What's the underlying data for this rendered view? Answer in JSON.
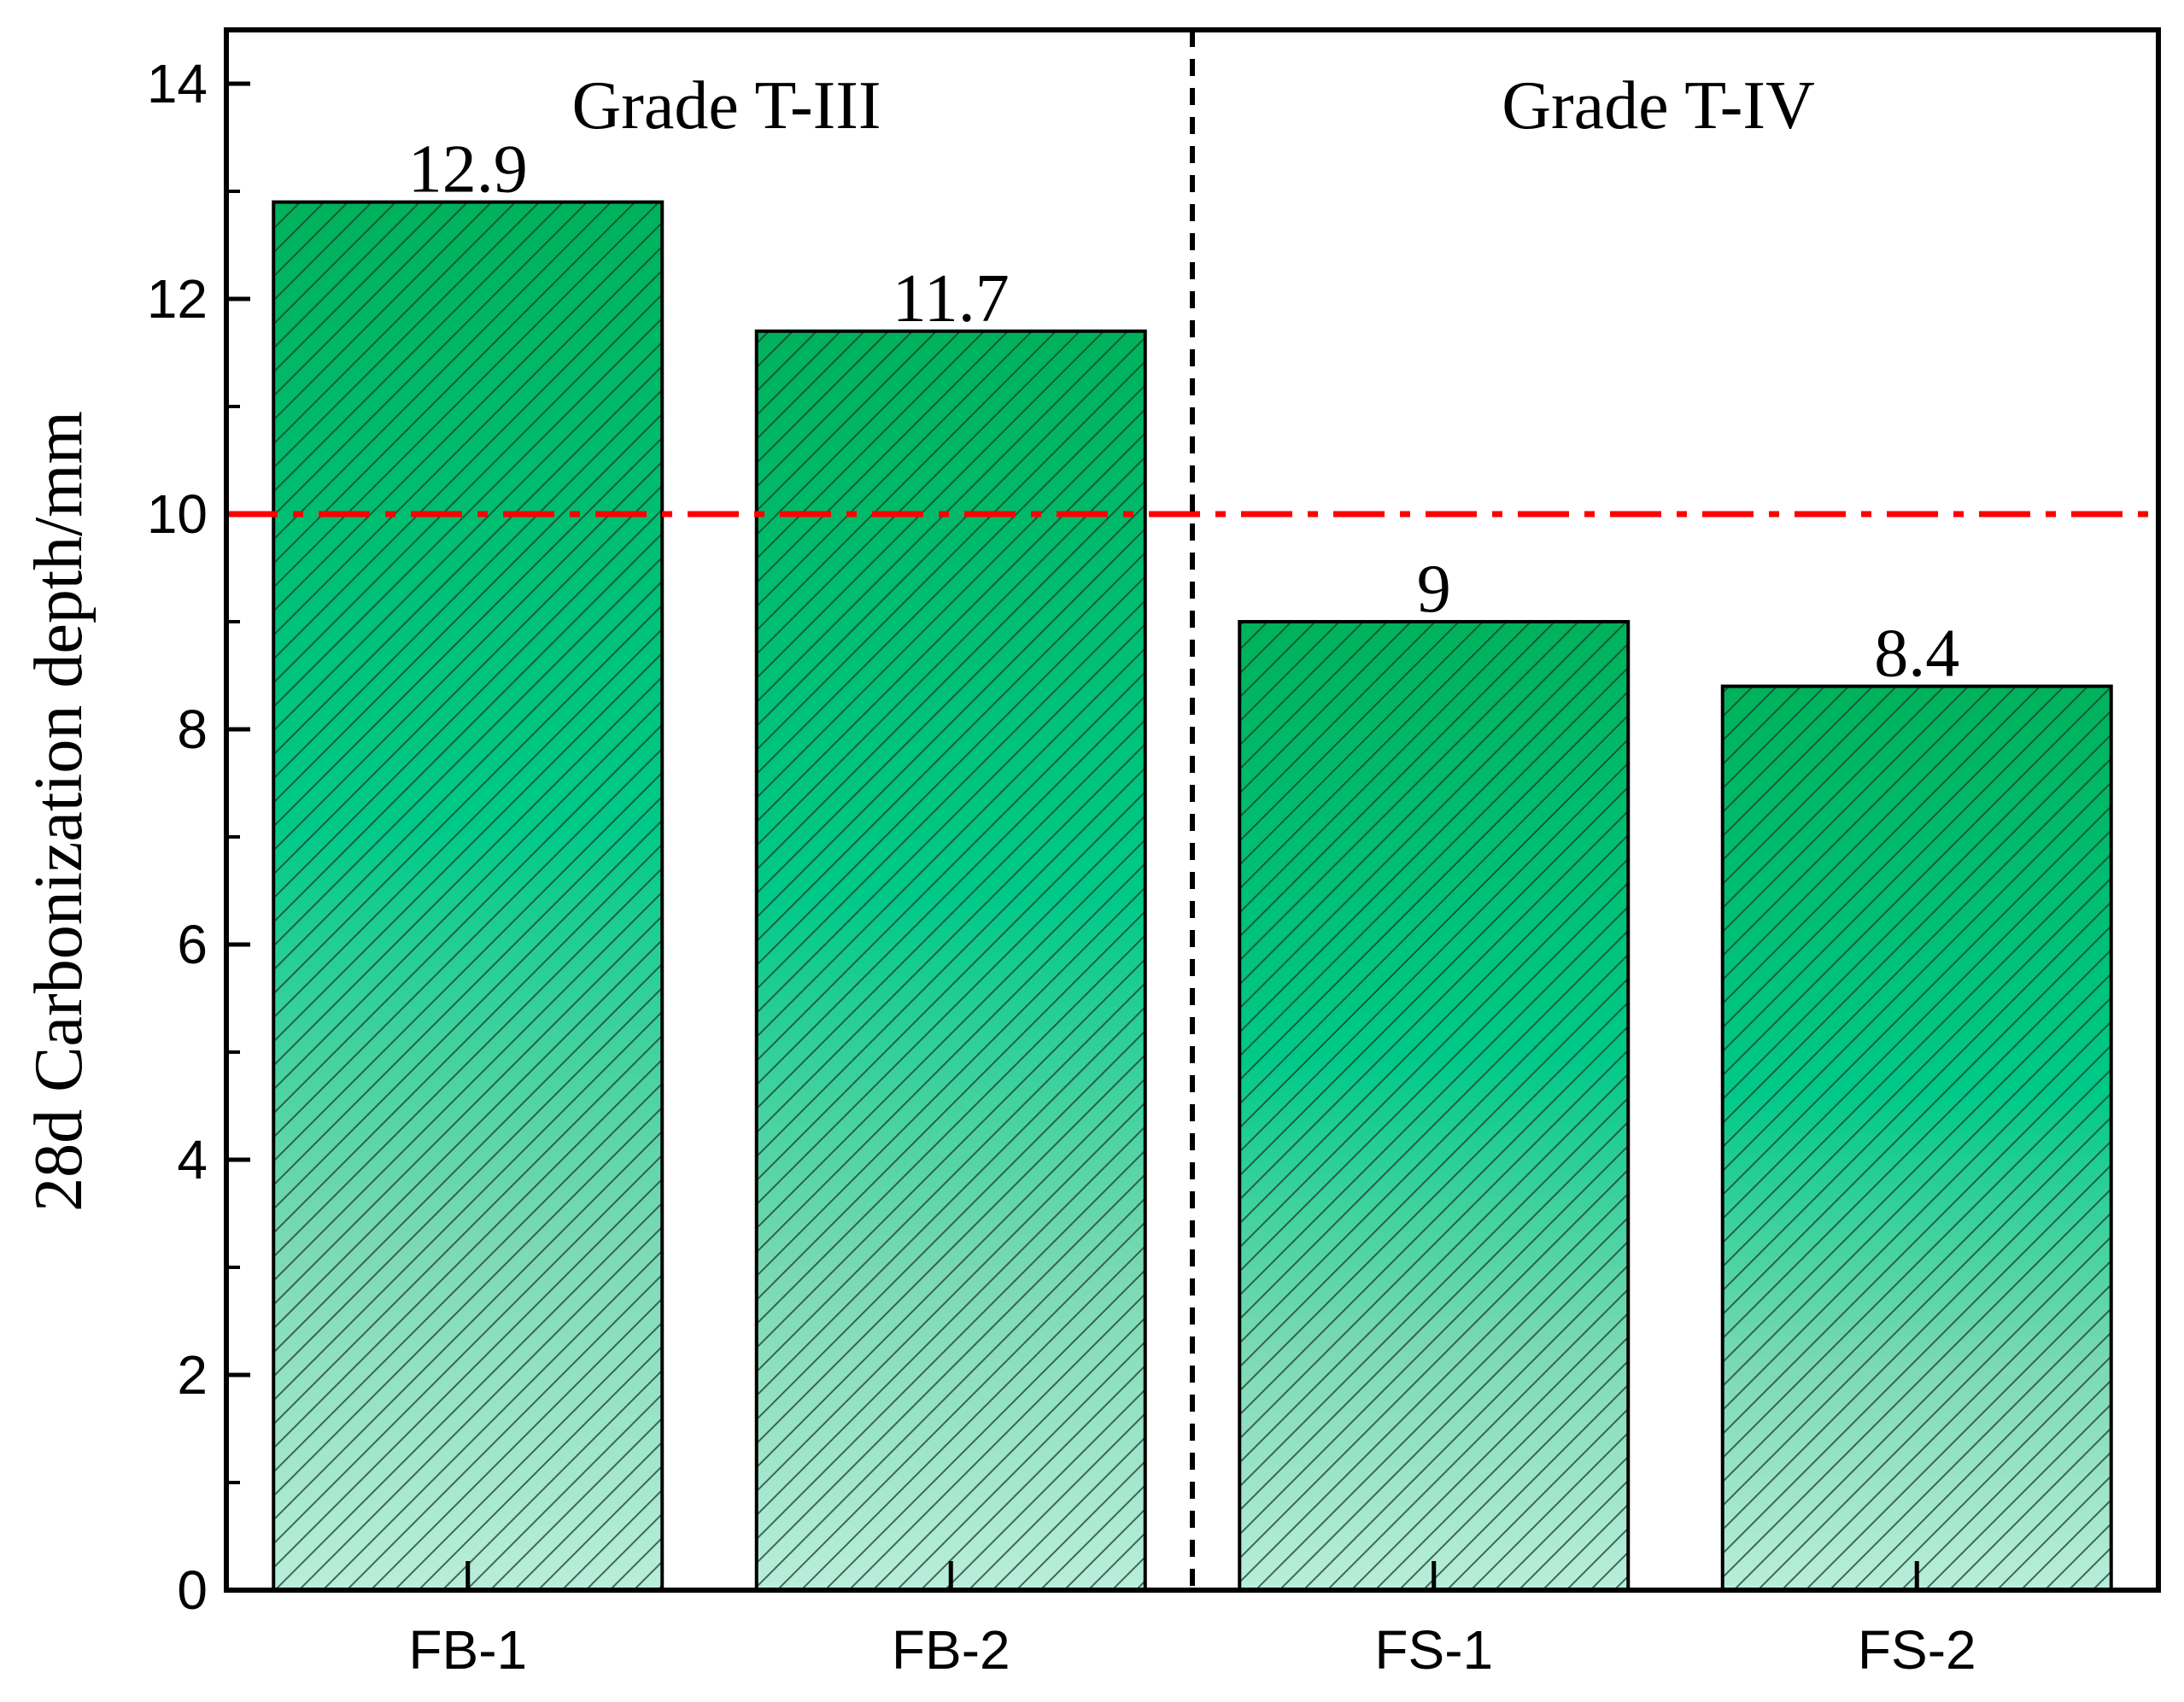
{
  "chart_data": {
    "type": "bar",
    "categories": [
      "FB-1",
      "FB-2",
      "FS-1",
      "FS-2"
    ],
    "values": [
      12.9,
      11.7,
      9,
      8.4
    ],
    "data_labels": [
      "12.9",
      "11.7",
      "9",
      "8.4"
    ],
    "title": "",
    "xlabel": "",
    "ylabel": "28d Carbonization depth/mm",
    "ylim": [
      0,
      14.5
    ],
    "yticks": [
      0,
      2,
      4,
      6,
      8,
      10,
      12,
      14
    ],
    "ytick_labels": [
      "0",
      "2",
      "4",
      "6",
      "8",
      "10",
      "12",
      "14"
    ],
    "reference_line": {
      "value": 10,
      "style": "dash-dot",
      "color": "#ff0000"
    },
    "group_divider_after": 2,
    "groups": [
      {
        "label": "Grade T-III",
        "categories": [
          "FB-1",
          "FB-2"
        ]
      },
      {
        "label": "Grade T-IV",
        "categories": [
          "FS-1",
          "FS-2"
        ]
      }
    ],
    "grid": false,
    "bar_pattern": "diagonal-hatch",
    "colors": {
      "bar_top": "#00b25b",
      "bar_mid": "#00c97f",
      "bar_bottom": "#b6ecd6",
      "outline": "#000000"
    }
  }
}
